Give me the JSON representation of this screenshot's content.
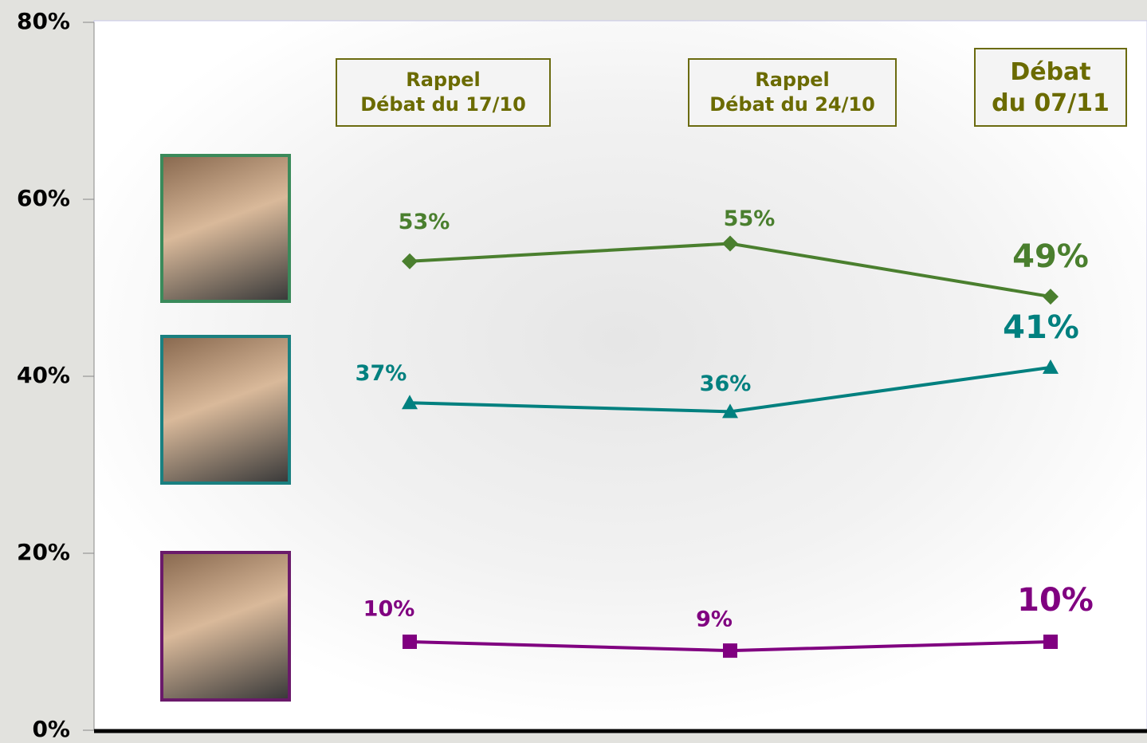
{
  "chart_data": {
    "type": "line",
    "categories": [
      "Rappel\nDébat du  17/10",
      "Rappel\nDébat du  24/10",
      "Débat\ndu 07/11"
    ],
    "series": [
      {
        "color": "#4a7f2e",
        "marker": "diamond",
        "values": [
          53,
          55,
          49
        ],
        "value_labels": [
          "53%",
          "55%",
          "49%"
        ]
      },
      {
        "color": "#00807f",
        "marker": "triangle",
        "values": [
          37,
          36,
          41
        ],
        "value_labels": [
          "37%",
          "36%",
          "41%"
        ]
      },
      {
        "color": "#800080",
        "marker": "square",
        "values": [
          10,
          9,
          10
        ],
        "value_labels": [
          "10%",
          "9%",
          "10%"
        ]
      }
    ],
    "ylim": [
      0,
      80
    ],
    "yticks": [
      {
        "value": 0,
        "label": "0%"
      },
      {
        "value": 20,
        "label": "20%"
      },
      {
        "value": 40,
        "label": "40%"
      },
      {
        "value": 60,
        "label": "60%"
      },
      {
        "value": 80,
        "label": "80%"
      }
    ]
  }
}
